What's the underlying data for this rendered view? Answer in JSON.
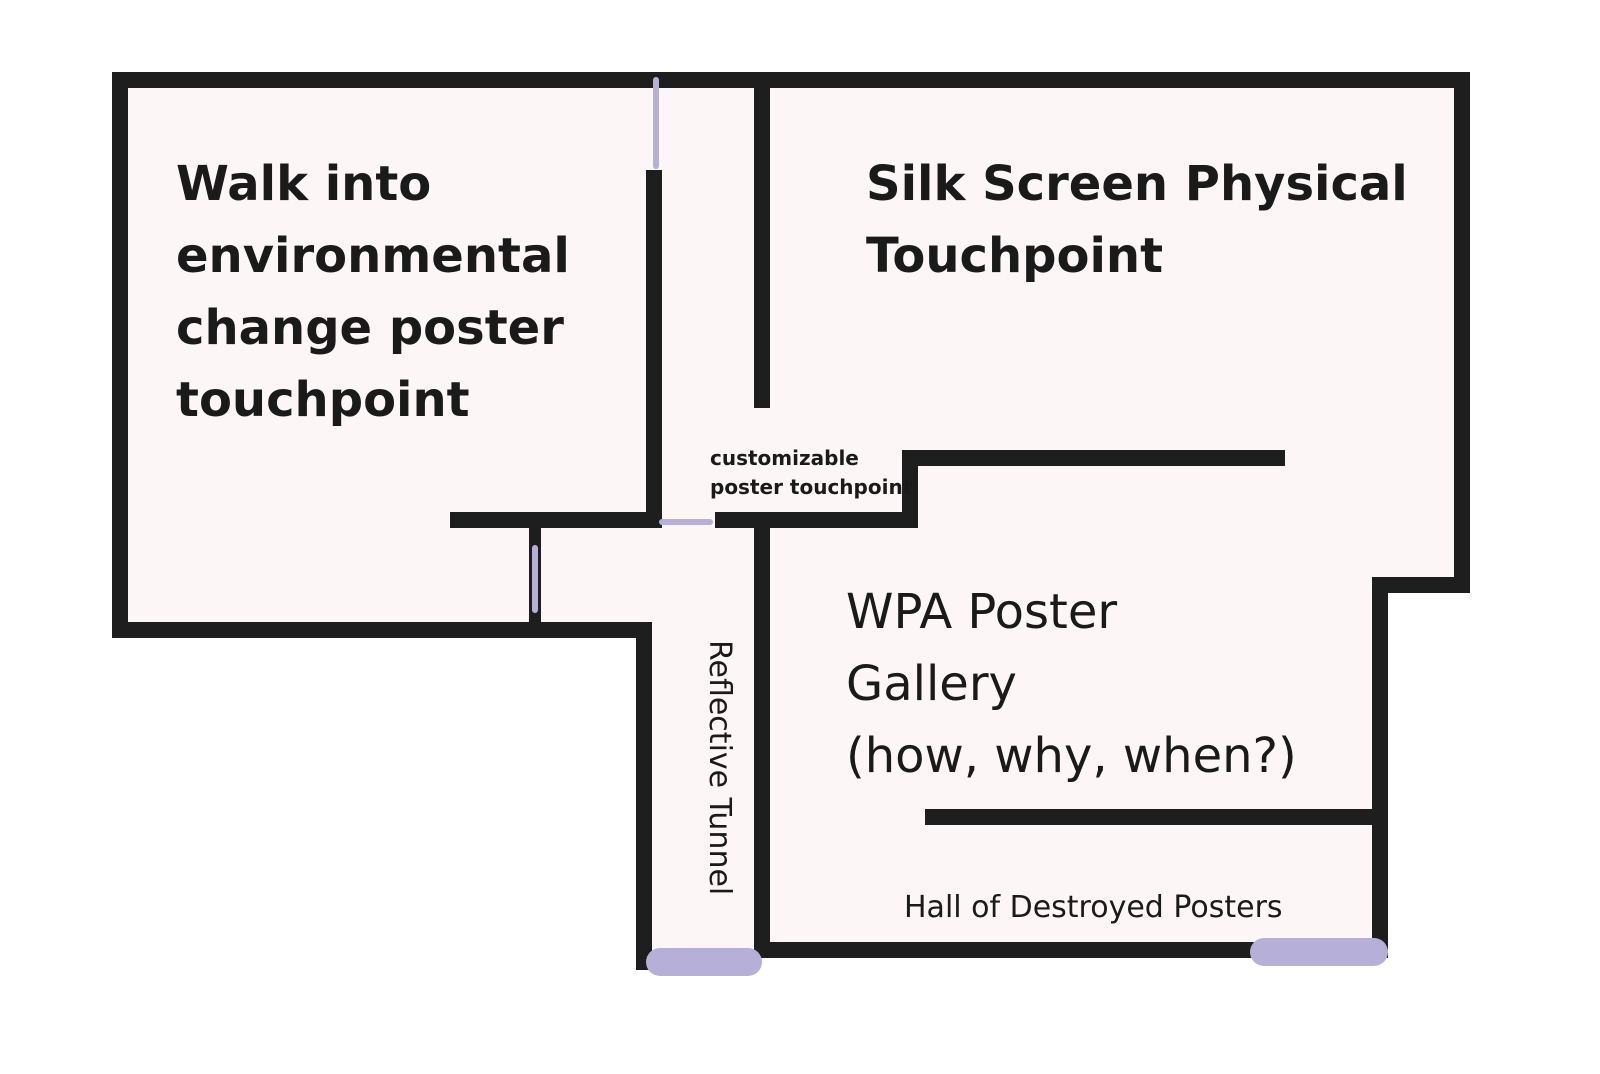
{
  "floor_plan": {
    "rooms": {
      "walk_into": {
        "lines": [
          "Walk into",
          "environmental",
          "change poster",
          "touchpoint"
        ]
      },
      "silk_screen": {
        "lines": [
          "Silk Screen Physical",
          "Touchpoint"
        ]
      },
      "customizable": {
        "lines": [
          "customizable",
          "poster touchpoint"
        ]
      },
      "wpa_gallery": {
        "lines": [
          "WPA Poster",
          "Gallery",
          "(how, why, when?)"
        ]
      },
      "reflective_tunnel": {
        "label": "Reflective Tunnel"
      },
      "hall_destroyed": {
        "label": "Hall of Destroyed Posters"
      }
    },
    "colors": {
      "wall": "#1e1e1e",
      "floor": "#fcf6f6",
      "door": "#b6b0d8",
      "text": "#1a1a1a"
    }
  }
}
